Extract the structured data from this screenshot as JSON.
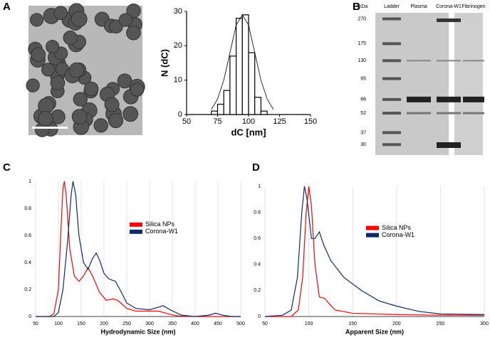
{
  "panels": [
    "A",
    "B",
    "C",
    "D"
  ],
  "chart_data": [
    {
      "type": "histogram",
      "xlabel": "dC [nm]",
      "ylabel": "N (dC)",
      "bins": [
        70,
        75,
        80,
        85,
        90,
        95,
        100,
        105,
        110,
        115
      ],
      "values": [
        1,
        3,
        7,
        17,
        28,
        29,
        18,
        5,
        1
      ],
      "fit": {
        "x": [
          70,
          75,
          80,
          85,
          90,
          95,
          100,
          105,
          110,
          115,
          120
        ],
        "values": [
          1.5,
          4.5,
          10,
          18,
          26,
          29,
          26,
          18,
          10,
          4.5,
          1.5
        ]
      },
      "xlim": [
        50,
        150
      ],
      "xticks": [
        50,
        75,
        100,
        125,
        150
      ],
      "ylim": [
        0,
        30
      ],
      "yticks": [
        0,
        10,
        20,
        30
      ],
      "color": "#000000"
    },
    {
      "type": "gel",
      "unit": "kDa",
      "lanes": [
        "Ladder",
        "Plasma",
        "Corona-W1",
        "Fibrinogen"
      ],
      "markers": [
        270,
        175,
        130,
        95,
        66,
        52,
        37,
        30
      ],
      "ylim": [
        300,
        25
      ],
      "log": true
    },
    {
      "type": "line",
      "xlabel": "Hydrodynamic Size (nm)",
      "xlim": [
        50,
        500
      ],
      "xticks": [
        50,
        100,
        150,
        200,
        250,
        300,
        350,
        400,
        450,
        500
      ],
      "ylim": [
        0,
        1
      ],
      "yticks": [
        0,
        0.2,
        0.4,
        0.6,
        0.8,
        1
      ],
      "grid": true,
      "legend": "center",
      "series": [
        {
          "name": "Silica NPs",
          "color": "#ff0000",
          "x": [
            50,
            80,
            90,
            100,
            105,
            110,
            113,
            117,
            125,
            135,
            145,
            155,
            165,
            175,
            190,
            205,
            220,
            230,
            250,
            270,
            300,
            320,
            340,
            360,
            400,
            500
          ],
          "values": [
            0,
            0,
            0.02,
            0.2,
            0.6,
            0.95,
            1,
            0.9,
            0.5,
            0.3,
            0.26,
            0.3,
            0.36,
            0.3,
            0.18,
            0.12,
            0.13,
            0.12,
            0.06,
            0.04,
            0.04,
            0.04,
            0.02,
            0.005,
            0,
            0
          ]
        },
        {
          "name": "Corona-W1",
          "color": "#0d2a6b",
          "x": [
            50,
            90,
            100,
            110,
            120,
            128,
            132,
            138,
            145,
            155,
            165,
            175,
            183,
            190,
            200,
            210,
            225,
            235,
            250,
            270,
            300,
            320,
            330,
            345,
            370,
            400,
            430,
            445,
            460,
            480,
            500
          ],
          "values": [
            0,
            0,
            0.03,
            0.2,
            0.55,
            0.9,
            1,
            0.9,
            0.6,
            0.4,
            0.35,
            0.43,
            0.47,
            0.42,
            0.32,
            0.28,
            0.26,
            0.2,
            0.1,
            0.06,
            0.05,
            0.07,
            0.08,
            0.05,
            0.01,
            0,
            0.01,
            0.025,
            0.01,
            0,
            0
          ]
        }
      ]
    },
    {
      "type": "line",
      "xlabel": "Apparent Size (nm)",
      "xlim": [
        50,
        300
      ],
      "xticks": [
        50,
        100,
        150,
        200,
        250,
        300
      ],
      "ylim": [
        0,
        1
      ],
      "yticks": [
        0,
        0.2,
        0.4,
        0.6,
        0.8,
        1
      ],
      "grid": true,
      "legend": "center",
      "series": [
        {
          "name": "Silica NPs",
          "color": "#ff0000",
          "x": [
            50,
            80,
            88,
            93,
            97,
            100,
            103,
            107,
            112,
            118,
            123,
            130,
            150,
            200,
            250,
            300
          ],
          "values": [
            0,
            0,
            0.05,
            0.3,
            0.8,
            1,
            0.85,
            0.4,
            0.15,
            0.14,
            0.1,
            0.05,
            0.025,
            0.015,
            0.01,
            0.01
          ]
        },
        {
          "name": "Corona-W1",
          "color": "#0d2a6b",
          "x": [
            50,
            70,
            80,
            87,
            92,
            95,
            98,
            103,
            107,
            112,
            117,
            125,
            140,
            160,
            180,
            200,
            225,
            250,
            300
          ],
          "values": [
            0,
            0.01,
            0.05,
            0.3,
            0.8,
            1,
            0.9,
            0.6,
            0.6,
            0.65,
            0.55,
            0.43,
            0.3,
            0.2,
            0.12,
            0.08,
            0.04,
            0.02,
            0.015
          ]
        }
      ]
    }
  ]
}
